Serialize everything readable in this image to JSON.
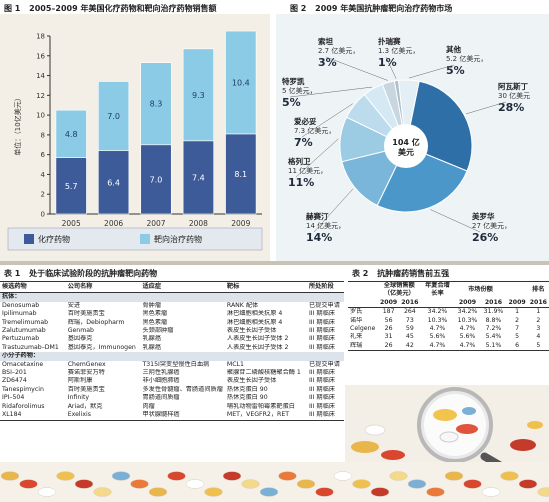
{
  "figure1": {
    "number": "图 1",
    "title": "2005–2009 年美国化疗药物和靶向治疗药物销售额",
    "ylabel": "单位：（10亿美元）",
    "legend": [
      "化疗药物",
      "靶向治疗药物"
    ]
  },
  "figure2": {
    "number": "图 2",
    "title": "2009 年美国抗肿瘤靶向治疗药物市场",
    "center_value": "104 亿",
    "center_unit": "美元",
    "slices": [
      {
        "name": "阿瓦斯丁",
        "value_text": "30 亿美元",
        "pct": "28%",
        "value": 28
      },
      {
        "name": "美罗华",
        "value_text": "27 亿美元，",
        "pct": "26%",
        "value": 26
      },
      {
        "name": "赫赛汀",
        "value_text": "14 亿美元，",
        "pct": "14%",
        "value": 14
      },
      {
        "name": "格列卫",
        "value_text": "11 亿美元，",
        "pct": "11%",
        "value": 11
      },
      {
        "name": "爱必妥",
        "value_text": "7.3 亿美元，",
        "pct": "7%",
        "value": 7
      },
      {
        "name": "特罗凯",
        "value_text": "5 亿美元，",
        "pct": "5%",
        "value": 5
      },
      {
        "name": "索坦",
        "value_text": "2.7 亿美元，",
        "pct": "3%",
        "value": 3
      },
      {
        "name": "扑瑞赛",
        "value_text": "1.3 亿美元，",
        "pct": "1%",
        "value": 1
      },
      {
        "name": "其他",
        "value_text": "5.2 亿美元，",
        "pct": "5%",
        "value": 5
      }
    ]
  },
  "chart_data": [
    {
      "type": "bar",
      "stacked": true,
      "title": "2005–2009 年美国化疗药物和靶向治疗药物销售额",
      "ylabel": "单位：（10亿美元）",
      "categories": [
        "2005",
        "2006",
        "2007",
        "2008",
        "2009"
      ],
      "series": [
        {
          "name": "化疗药物",
          "values": [
            5.7,
            6.4,
            7.0,
            7.4,
            8.1
          ],
          "labels": [
            "5.7",
            "6.4",
            "7.0",
            "7.4",
            "8.1"
          ],
          "color": "#3d5a99"
        },
        {
          "name": "靶向治疗药物",
          "values": [
            4.8,
            7.0,
            8.3,
            9.3,
            10.4
          ],
          "labels": [
            "4.8",
            "7.0",
            "8.3",
            "9.3",
            "10.4"
          ],
          "color": "#8ccbe6"
        }
      ],
      "ylim": [
        0,
        18
      ],
      "yticks": [
        "0",
        "2",
        "4",
        "6",
        "8",
        "10",
        "12",
        "14",
        "16",
        "18"
      ],
      "grid": false
    },
    {
      "type": "pie",
      "title": "2009 年美国抗肿瘤靶向治疗药物市场",
      "categories": [
        "阿瓦斯丁",
        "美罗华",
        "赫赛汀",
        "格列卫",
        "爱必妥",
        "特罗凯",
        "索坦",
        "扑瑞赛",
        "其他"
      ],
      "values": [
        28,
        26,
        14,
        11,
        7,
        5,
        3,
        1,
        5
      ],
      "center_label": "104 亿美元"
    }
  ],
  "table1": {
    "number": "表 1",
    "title": "处于临床试验阶段的抗肿瘤靶向药物",
    "headers": [
      "候选药物",
      "公司名称",
      "适应症",
      "靶标",
      "所处阶段"
    ],
    "section1": "抗体：",
    "section2": "小分子药物：",
    "rows1": [
      [
        "Denosumab",
        "安进",
        "骨肿瘤",
        "RANK 配体",
        "已提交申请"
      ],
      [
        "Ipilimumab",
        "百时美施贵宝",
        "黑色素瘤",
        "淋巴细胞相关抗原 4",
        "III 期临床"
      ],
      [
        "Tremelimumab",
        "辉瑞，Debiopharm",
        "黑色素瘤",
        "淋巴细胞相关抗原 4",
        "III 期临床"
      ],
      [
        "Zalutumumab",
        "Genmab",
        "头颈部肿瘤",
        "表皮生长因子受体",
        "III 期临床"
      ],
      [
        "Pertuzumab",
        "基因泰克",
        "乳腺癌",
        "人表皮生长因子受体 2",
        "III 期临床"
      ],
      [
        "Trastuzumab–DM1",
        "基因泰克，Immunogen",
        "乳腺癌",
        "人表皮生长因子受体 2",
        "III 期临床"
      ]
    ],
    "rows2": [
      [
        "Omacetaxine",
        "ChemGenex",
        "T315I突变型慢性白血病",
        "MCL1",
        "已提交申请"
      ],
      [
        "BSI–201",
        "赛诺菲安万特",
        "三阴性乳腺癌",
        "聚腺苷二磷酸核糖聚合酶 1",
        "III 期临床"
      ],
      [
        "ZD6474",
        "阿斯利康",
        "非小细胞肺癌",
        "表皮生长因子受体",
        "III 期临床"
      ],
      [
        "Tanespimycin",
        "百时美施贵宝",
        "多发性骨髓瘤、胃肠道间质瘤",
        "热休克蛋白 90",
        "III 期临床"
      ],
      [
        "IPI–504",
        "Infinity",
        "胃肠道间质瘤",
        "热休克蛋白 90",
        "III 期临床"
      ],
      [
        "Ridaforolimus",
        "Ariad，默克",
        "肉瘤",
        "哺乳动物雷帕霉素靶蛋白",
        "III 期临床"
      ],
      [
        "XL184",
        "Exelixis",
        "甲状腺髓样癌",
        "MET，VEGFR2，RET",
        "III 期临床"
      ]
    ]
  },
  "table2": {
    "number": "表 2",
    "title": "抗肿瘤药销售前五强",
    "group_headers": [
      "全球销售额（亿美元）",
      "年复合增长率",
      "市场份额",
      "排名"
    ],
    "sub_headers": [
      "2009",
      "2016",
      "",
      "2009",
      "2016",
      "2009",
      "2016"
    ],
    "rows": [
      [
        "罗氏",
        "187",
        "264",
        "34.2%",
        "34.2%",
        "31.9%",
        "1",
        "1"
      ],
      [
        "诺华",
        "56",
        "73",
        "10.3%",
        "10.3%",
        "8.8%",
        "2",
        "2"
      ],
      [
        "Celgene",
        "26",
        "59",
        "4.7%",
        "4.7%",
        "7.2%",
        "7",
        "3"
      ],
      [
        "礼来",
        "31",
        "45",
        "5.6%",
        "5.6%",
        "5.4%",
        "5",
        "4"
      ],
      [
        "辉瑞",
        "26",
        "42",
        "4.7%",
        "4.7%",
        "5.1%",
        "6",
        "5"
      ]
    ]
  },
  "colors": {
    "chemo": "#3d5a99",
    "targeted": "#8ccbe6",
    "pie_palette": [
      "#2f6fa8",
      "#4c97c9",
      "#7ab6d9",
      "#9ccbe4",
      "#bcdcee",
      "#d5e9f4",
      "#c7d6df",
      "#aebfca",
      "#e3eef5"
    ]
  }
}
